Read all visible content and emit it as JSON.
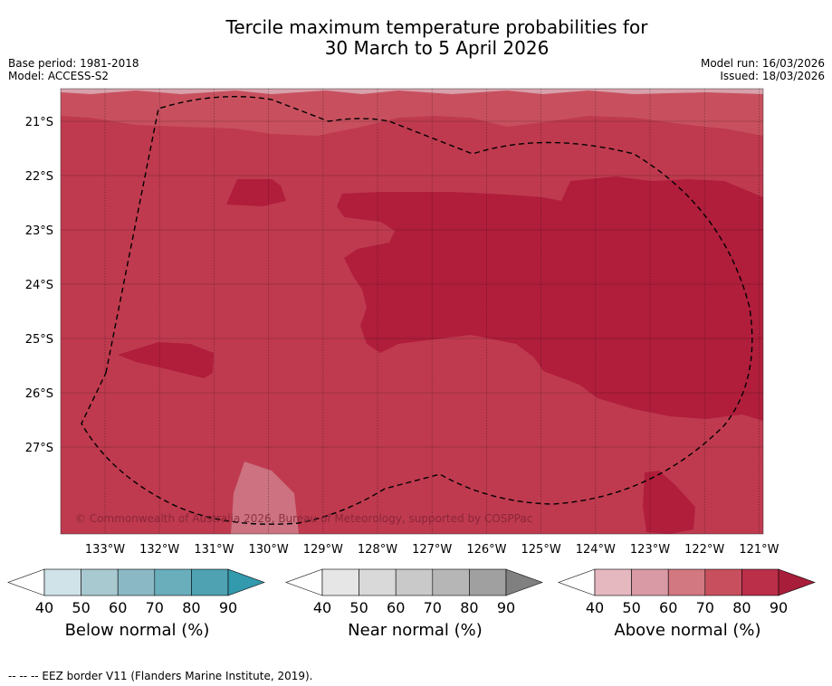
{
  "title_line1": "Tercile maximum temperature probabilities for",
  "title_line2": "30 March to 5 April 2026",
  "base_period": "Base period: 1981-2018",
  "model": "Model: ACCESS-S2",
  "model_run": "Model run: 16/03/2026",
  "issued": "Issued: 18/03/2026",
  "copyright": "© Commonwealth of Australia 2026, Bureau of Meteorology, supported by COSPPac",
  "map": {
    "lat_labels": [
      "21°S",
      "22°S",
      "23°S",
      "24°S",
      "25°S",
      "26°S",
      "27°S"
    ],
    "lon_labels": [
      "133°W",
      "132°W",
      "131°W",
      "130°W",
      "129°W",
      "128°W",
      "127°W",
      "126°W",
      "125°W",
      "124°W",
      "123°W",
      "122°W",
      "121°W"
    ],
    "fill_colors": {
      "top_light": "#d7a1ab",
      "upper_band": "#c8505e",
      "base_70_80": "#bf3a4f",
      "high_80_90": "#b01e3c"
    },
    "eez_line_color": "#000000"
  },
  "legends": [
    {
      "title": "Below normal (%)",
      "ticks": [
        "40",
        "50",
        "60",
        "70",
        "80",
        "90"
      ],
      "colors": [
        "#ffffff",
        "#cfe3e8",
        "#a9c9d0",
        "#8ab8c4",
        "#6aaebc",
        "#4ea2b2",
        "#3399ac"
      ]
    },
    {
      "title": "Near normal (%)",
      "ticks": [
        "40",
        "50",
        "60",
        "70",
        "80",
        "90"
      ],
      "colors": [
        "#ffffff",
        "#e6e6e6",
        "#d9d9d9",
        "#c9c9c9",
        "#b6b6b6",
        "#a0a0a0",
        "#808080"
      ]
    },
    {
      "title": "Above normal (%)",
      "ticks": [
        "40",
        "50",
        "60",
        "70",
        "80",
        "90"
      ],
      "colors": [
        "#ffffff",
        "#e5b8c0",
        "#d99aa5",
        "#d17880",
        "#c8505e",
        "#bb2f49",
        "#a81e3a"
      ]
    }
  ],
  "footnote": "--  --  -- EEZ border V11 (Flanders Marine Institute, 2019)."
}
